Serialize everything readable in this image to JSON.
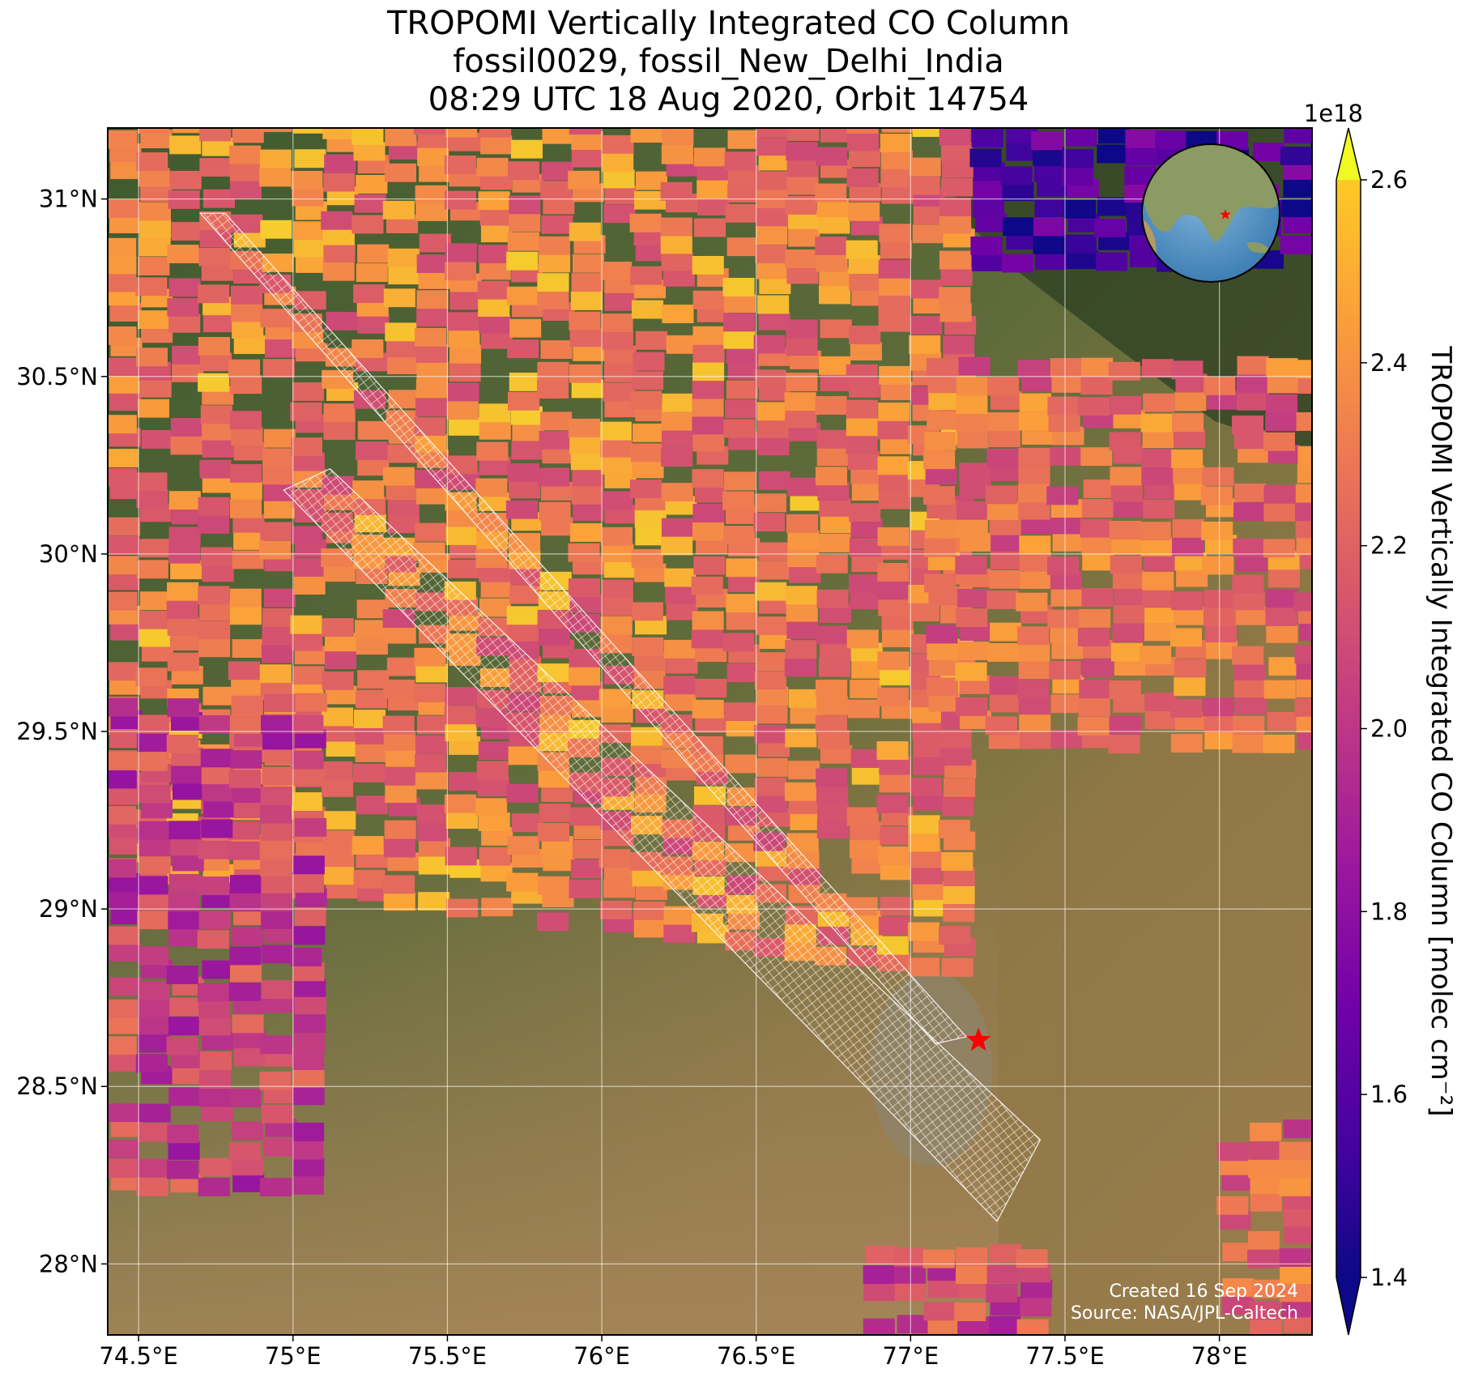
{
  "title": {
    "line1": "TROPOMI Vertically Integrated CO Column",
    "line2": "fossil0029, fossil_New_Delhi_India",
    "line3": "08:29 UTC 18 Aug 2020, Orbit 14754"
  },
  "map": {
    "lon_range": [
      74.4,
      78.3
    ],
    "lat_range": [
      27.8,
      31.2
    ],
    "x_ticks": [
      {
        "value": 74.5,
        "label": "74.5°E"
      },
      {
        "value": 75.0,
        "label": "75°E"
      },
      {
        "value": 75.5,
        "label": "75.5°E"
      },
      {
        "value": 76.0,
        "label": "76°E"
      },
      {
        "value": 76.5,
        "label": "76.5°E"
      },
      {
        "value": 77.0,
        "label": "77°E"
      },
      {
        "value": 77.5,
        "label": "77.5°E"
      },
      {
        "value": 78.0,
        "label": "78°E"
      }
    ],
    "y_ticks": [
      {
        "value": 28.0,
        "label": "28°N"
      },
      {
        "value": 28.5,
        "label": "28.5°N"
      },
      {
        "value": 29.0,
        "label": "29°N"
      },
      {
        "value": 29.5,
        "label": "29.5°N"
      },
      {
        "value": 30.0,
        "label": "30°N"
      },
      {
        "value": 30.5,
        "label": "30.5°N"
      },
      {
        "value": 31.0,
        "label": "31°N"
      }
    ],
    "grid": true,
    "target_marker": {
      "lon": 77.22,
      "lat": 28.63,
      "symbol": "star",
      "color": "#ff0000"
    },
    "inset_globe": {
      "center_lon": 78,
      "center_lat": 25,
      "marker_color": "#ff0000",
      "position": "top-right"
    },
    "target_swaths": [
      {
        "corners": [
          [
            74.7,
            30.96
          ],
          [
            74.78,
            30.96
          ],
          [
            77.18,
            28.64
          ],
          [
            77.08,
            28.62
          ]
        ]
      },
      {
        "corners": [
          [
            74.97,
            30.18
          ],
          [
            75.12,
            30.24
          ],
          [
            77.42,
            28.35
          ],
          [
            77.28,
            28.12
          ]
        ]
      }
    ],
    "credits": {
      "line1": "Created 16 Sep 2024",
      "line2": "Source: NASA/JPL-Caltech"
    }
  },
  "colorbar": {
    "label": "TROPOMI Vertically Integrated CO Column [molec cm⁻²]",
    "exponent": "1e18",
    "min": 1.4,
    "max": 2.6,
    "extend": "both",
    "colormap": "plasma",
    "ticks": [
      {
        "value": 1.4,
        "label": "1.4"
      },
      {
        "value": 1.6,
        "label": "1.6"
      },
      {
        "value": 1.8,
        "label": "1.8"
      },
      {
        "value": 2.0,
        "label": "2.0"
      },
      {
        "value": 2.2,
        "label": "2.2"
      },
      {
        "value": 2.4,
        "label": "2.4"
      },
      {
        "value": 2.6,
        "label": "2.6"
      }
    ]
  },
  "co_field": {
    "units": "1e18 molec cm-2",
    "regions": [
      {
        "name": "north-band",
        "lon": [
          74.4,
          77.2
        ],
        "lat_north": 31.2,
        "lat_south_start": 29.1,
        "lat_south_end": 28.8,
        "mean": 2.3
      },
      {
        "name": "northeast-block",
        "lon": [
          77.05,
          78.3
        ],
        "lat": [
          29.45,
          30.55
        ],
        "mean": 2.25
      },
      {
        "name": "northeast-corner",
        "lon": [
          77.2,
          78.3
        ],
        "lat": [
          30.8,
          31.2
        ],
        "mean": 1.55
      },
      {
        "name": "west-edge",
        "lon": [
          74.4,
          75.1
        ],
        "lat": [
          28.2,
          29.6
        ],
        "mean": 2.05
      },
      {
        "name": "southeast-corner",
        "lon": [
          78.0,
          78.3
        ],
        "lat": [
          27.8,
          28.4
        ],
        "mean": 2.2
      },
      {
        "name": "south-patch",
        "lon": [
          76.85,
          77.4
        ],
        "lat": [
          27.8,
          28.05
        ],
        "mean": 2.1
      }
    ]
  }
}
